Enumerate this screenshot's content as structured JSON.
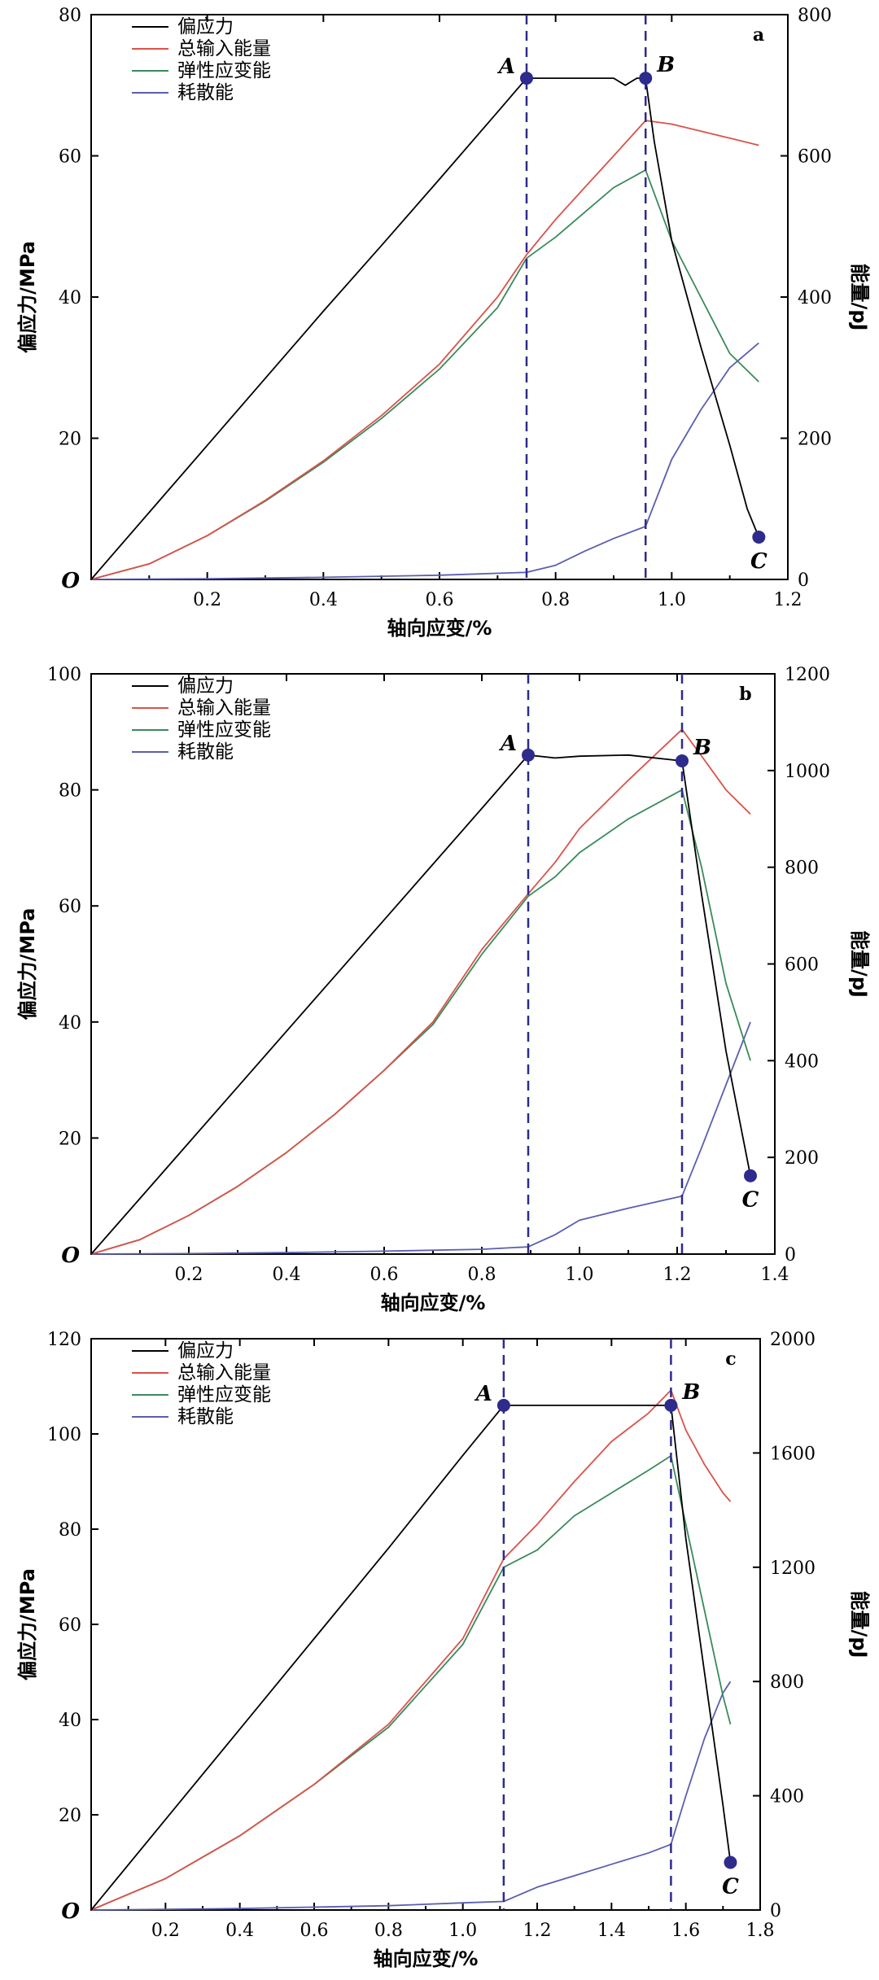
{
  "colors": {
    "deviatoric_stress": "#000000",
    "total_input_energy": "#d9534a",
    "elastic_strain_energy": "#3a8a5c",
    "dissipated_energy": "#5a5fb0",
    "markers": "#2e2b8c",
    "dashed_lines": "#2e2b8c"
  },
  "chart_data": [
    {
      "type": "line",
      "panel_label": "a",
      "xlabel": "轴向应变/%",
      "ylabel_left": "偏应力/MPa",
      "ylabel_right": "能量/pJ",
      "origin_label": "O",
      "xlim": [
        0,
        1.2
      ],
      "ylim_left": [
        0,
        80
      ],
      "ylim_right": [
        0,
        800
      ],
      "x_ticks": [
        0.2,
        0.4,
        0.6,
        0.8,
        1.0,
        1.2
      ],
      "x_tick_labels": [
        "0.2",
        "0.4",
        "0.6",
        "0.8",
        "1.0",
        "1.2"
      ],
      "y_left_ticks": [
        0,
        20,
        40,
        60,
        80
      ],
      "y_left_tick_labels": [
        "0",
        "20",
        "40",
        "60",
        "80"
      ],
      "y_right_ticks": [
        0,
        200,
        400,
        600,
        800
      ],
      "y_right_tick_labels": [
        "0",
        "200",
        "400",
        "600",
        "800"
      ],
      "legend": [
        "偏应力",
        "总输入能量",
        "弹性应变能",
        "耗散能"
      ],
      "legend_position": "top-left",
      "dashed_x": [
        0.75,
        0.955
      ],
      "points": [
        {
          "label": "A",
          "x": 0.75,
          "y": 71
        },
        {
          "label": "B",
          "x": 0.955,
          "y": 71
        },
        {
          "label": "C",
          "x": 1.15,
          "y": 6
        }
      ],
      "series": [
        {
          "name": "偏应力",
          "axis": "left",
          "x": [
            0,
            0.1,
            0.2,
            0.3,
            0.4,
            0.5,
            0.6,
            0.7,
            0.75,
            0.8,
            0.85,
            0.9,
            0.92,
            0.93,
            0.94,
            0.955,
            0.97,
            1.0,
            1.05,
            1.1,
            1.13,
            1.15
          ],
          "y": [
            0,
            9.5,
            19,
            28.5,
            38,
            47.3,
            56.7,
            66.2,
            71,
            71,
            71,
            71,
            70,
            70.5,
            71,
            71,
            62,
            48,
            33,
            19,
            10,
            6
          ]
        },
        {
          "name": "总输入能量",
          "axis": "right",
          "x": [
            0,
            0.1,
            0.2,
            0.3,
            0.4,
            0.5,
            0.6,
            0.7,
            0.75,
            0.8,
            0.85,
            0.9,
            0.955,
            1.0,
            1.05,
            1.1,
            1.15
          ],
          "y": [
            0,
            22,
            62,
            112,
            168,
            232,
            305,
            400,
            460,
            510,
            555,
            600,
            650,
            645,
            635,
            625,
            615
          ]
        },
        {
          "name": "弹性应变能",
          "axis": "right",
          "x": [
            0,
            0.1,
            0.2,
            0.3,
            0.4,
            0.5,
            0.6,
            0.7,
            0.75,
            0.8,
            0.85,
            0.9,
            0.955,
            1.0,
            1.05,
            1.1,
            1.15
          ],
          "y": [
            0,
            22,
            62,
            111,
            166,
            228,
            298,
            385,
            455,
            485,
            520,
            555,
            580,
            480,
            400,
            320,
            280
          ]
        },
        {
          "name": "耗散能",
          "axis": "right",
          "x": [
            0,
            0.2,
            0.4,
            0.6,
            0.75,
            0.8,
            0.85,
            0.9,
            0.955,
            1.0,
            1.05,
            1.1,
            1.15
          ],
          "y": [
            0,
            1,
            3,
            6,
            10,
            20,
            40,
            58,
            75,
            170,
            240,
            300,
            335
          ]
        }
      ]
    },
    {
      "type": "line",
      "panel_label": "b",
      "xlabel": "轴向应变/%",
      "ylabel_left": "偏应力/MPa",
      "ylabel_right": "能量/pJ",
      "origin_label": "O",
      "xlim": [
        0,
        1.4
      ],
      "ylim_left": [
        0,
        100
      ],
      "ylim_right": [
        0,
        1200
      ],
      "x_ticks": [
        0.2,
        0.4,
        0.6,
        0.8,
        1.0,
        1.2,
        1.4
      ],
      "x_tick_labels": [
        "0.2",
        "0.4",
        "0.6",
        "0.8",
        "1.0",
        "1.2",
        "1.4"
      ],
      "y_left_ticks": [
        0,
        20,
        40,
        60,
        80,
        100
      ],
      "y_left_tick_labels": [
        "0",
        "20",
        "40",
        "60",
        "80",
        "100"
      ],
      "y_right_ticks": [
        0,
        200,
        400,
        600,
        800,
        1000,
        1200
      ],
      "y_right_tick_labels": [
        "0",
        "200",
        "400",
        "600",
        "800",
        "1000",
        "1200"
      ],
      "legend": [
        "偏应力",
        "总输入能量",
        "弹性应变能",
        "耗散能"
      ],
      "legend_position": "top-left",
      "dashed_x": [
        0.895,
        1.21
      ],
      "points": [
        {
          "label": "A",
          "x": 0.895,
          "y": 86
        },
        {
          "label": "B",
          "x": 1.21,
          "y": 85
        },
        {
          "label": "C",
          "x": 1.35,
          "y": 13.5
        }
      ],
      "series": [
        {
          "name": "偏应力",
          "axis": "left",
          "x": [
            0,
            0.1,
            0.2,
            0.3,
            0.4,
            0.5,
            0.6,
            0.7,
            0.8,
            0.895,
            0.95,
            1.0,
            1.1,
            1.21,
            1.25,
            1.3,
            1.35
          ],
          "y": [
            0,
            9.6,
            19.2,
            28.8,
            38.4,
            48,
            57.6,
            67.2,
            76.8,
            86,
            85.5,
            85.8,
            86,
            85,
            62,
            35,
            13.5
          ]
        },
        {
          "name": "总输入能量",
          "axis": "right",
          "x": [
            0,
            0.1,
            0.2,
            0.3,
            0.4,
            0.5,
            0.6,
            0.7,
            0.8,
            0.895,
            0.95,
            1.0,
            1.1,
            1.21,
            1.25,
            1.3,
            1.35
          ],
          "y": [
            0,
            30,
            80,
            140,
            210,
            290,
            380,
            480,
            630,
            745,
            810,
            880,
            980,
            1085,
            1030,
            960,
            910
          ]
        },
        {
          "name": "弹性应变能",
          "axis": "right",
          "x": [
            0,
            0.1,
            0.2,
            0.3,
            0.4,
            0.5,
            0.6,
            0.7,
            0.8,
            0.895,
            0.95,
            1.0,
            1.1,
            1.21,
            1.25,
            1.3,
            1.35
          ],
          "y": [
            0,
            30,
            80,
            140,
            210,
            290,
            380,
            475,
            620,
            740,
            780,
            830,
            900,
            960,
            800,
            560,
            400
          ]
        },
        {
          "name": "耗散能",
          "axis": "right",
          "x": [
            0,
            0.2,
            0.4,
            0.6,
            0.8,
            0.895,
            0.95,
            1.0,
            1.1,
            1.21,
            1.25,
            1.3,
            1.35
          ],
          "y": [
            0,
            1,
            3,
            6,
            10,
            15,
            40,
            70,
            95,
            120,
            220,
            350,
            480
          ]
        }
      ]
    },
    {
      "type": "line",
      "panel_label": "c",
      "xlabel": "轴向应变/%",
      "ylabel_left": "偏应力/MPa",
      "ylabel_right": "能量/pJ",
      "origin_label": "O",
      "xlim": [
        0,
        1.8
      ],
      "ylim_left": [
        0,
        120
      ],
      "ylim_right": [
        0,
        2000
      ],
      "x_ticks": [
        0.2,
        0.4,
        0.6,
        0.8,
        1.0,
        1.2,
        1.4,
        1.6,
        1.8
      ],
      "x_tick_labels": [
        "0.2",
        "0.4",
        "0.6",
        "0.8",
        "1.0",
        "1.2",
        "1.4",
        "1.6",
        "1.8"
      ],
      "y_left_ticks": [
        0,
        20,
        40,
        60,
        80,
        100,
        120
      ],
      "y_left_tick_labels": [
        "0",
        "20",
        "40",
        "60",
        "80",
        "100",
        "120"
      ],
      "y_right_ticks": [
        0,
        400,
        800,
        1200,
        1600,
        2000
      ],
      "y_right_tick_labels": [
        "0",
        "400",
        "800",
        "1200",
        "1600",
        "2000"
      ],
      "legend": [
        "偏应力",
        "总输入能量",
        "弹性应变能",
        "耗散能"
      ],
      "legend_position": "top-left",
      "dashed_x": [
        1.11,
        1.56
      ],
      "points": [
        {
          "label": "A",
          "x": 1.11,
          "y": 106
        },
        {
          "label": "B",
          "x": 1.56,
          "y": 106
        },
        {
          "label": "C",
          "x": 1.72,
          "y": 10
        }
      ],
      "series": [
        {
          "name": "偏应力",
          "axis": "left",
          "x": [
            0,
            0.2,
            0.4,
            0.6,
            0.8,
            1.0,
            1.11,
            1.2,
            1.3,
            1.4,
            1.5,
            1.56,
            1.6,
            1.65,
            1.7,
            1.72
          ],
          "y": [
            0,
            19,
            38,
            57,
            76,
            95.5,
            106,
            106,
            106,
            106,
            106,
            106,
            78,
            50,
            22,
            10
          ]
        },
        {
          "name": "总输入能量",
          "axis": "right",
          "x": [
            0,
            0.2,
            0.4,
            0.6,
            0.8,
            1.0,
            1.11,
            1.2,
            1.3,
            1.4,
            1.5,
            1.56,
            1.6,
            1.65,
            1.7,
            1.72
          ],
          "y": [
            0,
            110,
            260,
            440,
            650,
            950,
            1230,
            1350,
            1500,
            1640,
            1740,
            1820,
            1680,
            1560,
            1460,
            1430
          ]
        },
        {
          "name": "弹性应变能",
          "axis": "right",
          "x": [
            0,
            0.2,
            0.4,
            0.6,
            0.8,
            1.0,
            1.11,
            1.2,
            1.3,
            1.4,
            1.5,
            1.56,
            1.6,
            1.65,
            1.7,
            1.72
          ],
          "y": [
            0,
            110,
            260,
            440,
            640,
            930,
            1200,
            1260,
            1380,
            1460,
            1540,
            1590,
            1350,
            1050,
            750,
            650
          ]
        },
        {
          "name": "耗散能",
          "axis": "right",
          "x": [
            0,
            0.4,
            0.8,
            1.0,
            1.11,
            1.2,
            1.3,
            1.4,
            1.5,
            1.56,
            1.6,
            1.65,
            1.7,
            1.72
          ],
          "y": [
            0,
            5,
            15,
            25,
            30,
            80,
            120,
            160,
            200,
            230,
            400,
            600,
            760,
            800
          ]
        }
      ]
    }
  ]
}
